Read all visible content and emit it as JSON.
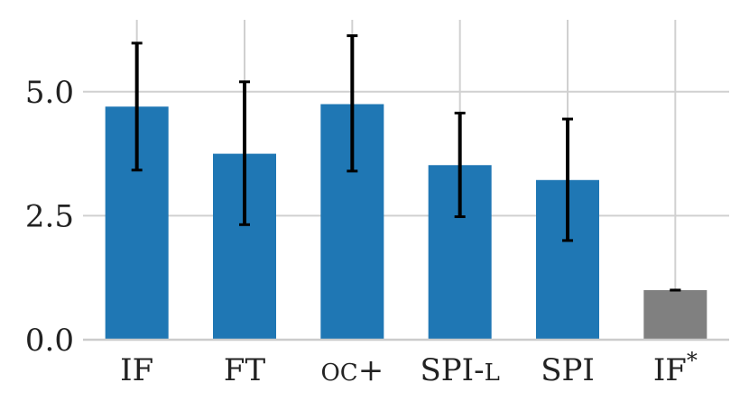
{
  "chart_data": {
    "type": "bar",
    "categories": [
      "IF",
      "FT",
      "OC+",
      "SPI-L",
      "SPI",
      "IF*"
    ],
    "category_labels": [
      {
        "parts": [
          {
            "t": "I",
            "sc": false
          },
          {
            "t": "F",
            "sc": false
          }
        ]
      },
      {
        "parts": [
          {
            "t": "FT",
            "sc": false
          }
        ]
      },
      {
        "parts": [
          {
            "t": "OC",
            "sc": true
          },
          {
            "t": "+",
            "sc": false
          }
        ]
      },
      {
        "parts": [
          {
            "t": "SPI-",
            "sc": false
          },
          {
            "t": "L",
            "sc": true
          }
        ]
      },
      {
        "parts": [
          {
            "t": "SPI",
            "sc": false
          }
        ]
      },
      {
        "parts": [
          {
            "t": "I",
            "sc": false
          },
          {
            "t": "F",
            "sc": false
          },
          {
            "t": "*",
            "sc": false,
            "sup": true
          }
        ]
      }
    ],
    "values": [
      4.7,
      3.75,
      4.75,
      3.52,
      3.22,
      1.0
    ],
    "errors": [
      [
        3.42,
        5.98
      ],
      [
        2.32,
        5.2
      ],
      [
        3.4,
        6.13
      ],
      [
        2.48,
        4.57
      ],
      [
        2.0,
        4.45
      ],
      [
        1.0,
        1.0
      ]
    ],
    "bar_colors": [
      "#1f77b4",
      "#1f77b4",
      "#1f77b4",
      "#1f77b4",
      "#1f77b4",
      "#808080"
    ],
    "yticks": [
      "0.0",
      "2.5",
      "5.0"
    ],
    "ytick_values": [
      0,
      2.5,
      5.0
    ],
    "ylim": [
      0,
      6.45
    ],
    "grid": true,
    "title": "",
    "xlabel": "",
    "ylabel": ""
  }
}
